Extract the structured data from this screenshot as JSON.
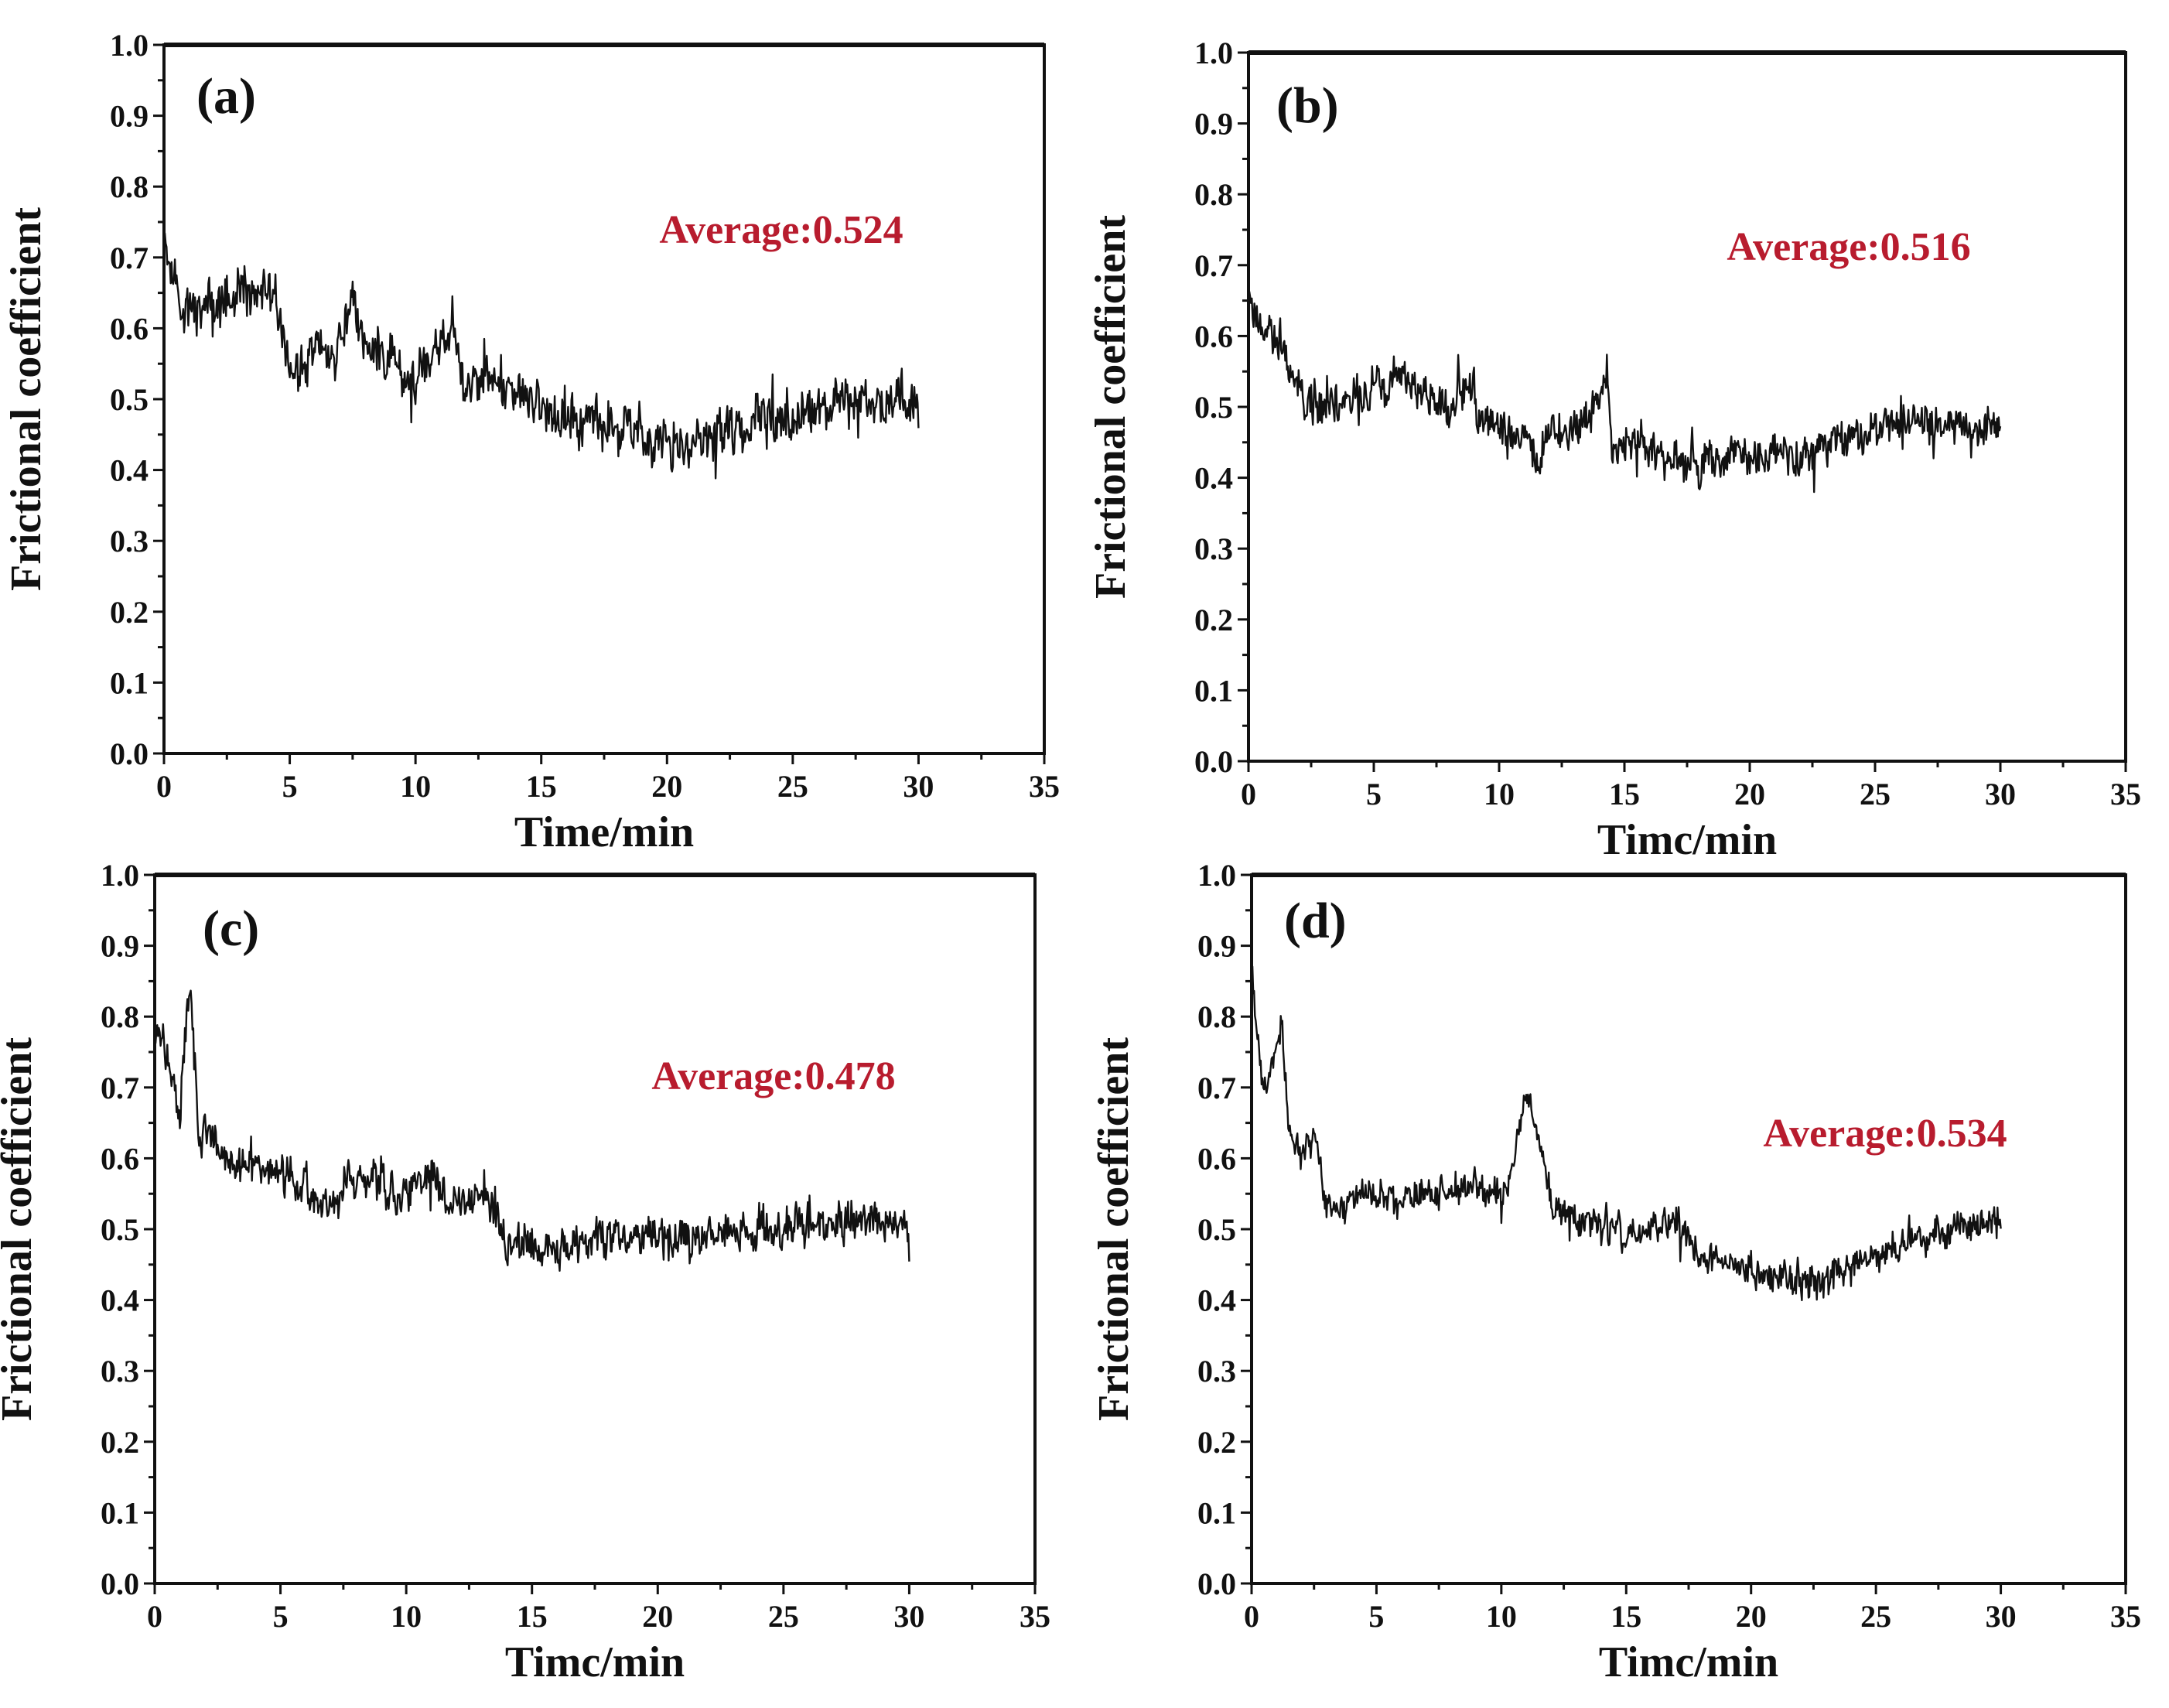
{
  "chart_data": [
    {
      "type": "line",
      "panel": "(a)",
      "xlabel": "Time/min",
      "ylabel": "Frictional coefficient",
      "xlim": [
        0,
        35
      ],
      "ylim": [
        0,
        1.0
      ],
      "xticks": [
        "0",
        "5",
        "10",
        "15",
        "20",
        "25",
        "30",
        "35"
      ],
      "yticks": [
        "0.0",
        "0.1",
        "0.2",
        "0.3",
        "0.4",
        "0.5",
        "0.6",
        "0.7",
        "0.8",
        "0.9",
        "1.0"
      ],
      "annotation": "Average:0.524",
      "noise": 0.03,
      "seed": 11,
      "series": [
        {
          "name": "Frictional coefficient",
          "x": [
            0,
            0.3,
            1,
            2,
            3,
            4,
            4.8,
            5,
            6,
            7,
            7.5,
            8,
            9,
            10,
            11,
            11.5,
            12,
            13,
            14,
            15,
            16,
            17,
            18,
            19,
            20,
            21,
            22,
            23,
            24,
            25,
            26,
            27,
            28,
            29,
            30
          ],
          "y": [
            0.75,
            0.67,
            0.62,
            0.63,
            0.64,
            0.66,
            0.61,
            0.52,
            0.56,
            0.57,
            0.64,
            0.57,
            0.56,
            0.52,
            0.58,
            0.6,
            0.52,
            0.53,
            0.51,
            0.49,
            0.47,
            0.47,
            0.46,
            0.45,
            0.44,
            0.43,
            0.45,
            0.46,
            0.47,
            0.47,
            0.48,
            0.49,
            0.5,
            0.5,
            0.49
          ]
        }
      ]
    },
    {
      "type": "line",
      "panel": "(b)",
      "xlabel": "Timc/min",
      "ylabel": "Frictional coefficient",
      "xlim": [
        0,
        35
      ],
      "ylim": [
        0,
        1.0
      ],
      "xticks": [
        "0",
        "5",
        "10",
        "15",
        "20",
        "25",
        "30",
        "35"
      ],
      "yticks": [
        "0.0",
        "0.1",
        "0.2",
        "0.3",
        "0.4",
        "0.5",
        "0.6",
        "0.7",
        "0.8",
        "0.9",
        "1.0"
      ],
      "annotation": "Average:0.516",
      "noise": 0.025,
      "seed": 23,
      "series": [
        {
          "name": "Frictional coefficient",
          "x": [
            0,
            0.5,
            1,
            2,
            3,
            4,
            5,
            6,
            7,
            8,
            9,
            9.1,
            10,
            11,
            11.5,
            12,
            13,
            14,
            14.3,
            14.5,
            15,
            16,
            17,
            18,
            19,
            20,
            21,
            22,
            23,
            24,
            25,
            26,
            27,
            28,
            29,
            30
          ],
          "y": [
            0.66,
            0.62,
            0.6,
            0.53,
            0.5,
            0.51,
            0.52,
            0.54,
            0.52,
            0.5,
            0.53,
            0.48,
            0.47,
            0.46,
            0.42,
            0.46,
            0.47,
            0.5,
            0.54,
            0.45,
            0.46,
            0.44,
            0.42,
            0.42,
            0.43,
            0.43,
            0.43,
            0.44,
            0.45,
            0.46,
            0.47,
            0.48,
            0.48,
            0.48,
            0.47,
            0.47
          ]
        }
      ]
    },
    {
      "type": "line",
      "panel": "(c)",
      "xlabel": "Timc/min",
      "ylabel": "Frictional coefficient",
      "xlim": [
        0,
        35
      ],
      "ylim": [
        0,
        1.0
      ],
      "xticks": [
        "0",
        "5",
        "10",
        "15",
        "20",
        "25",
        "30",
        "35"
      ],
      "yticks": [
        "0.0",
        "0.1",
        "0.2",
        "0.3",
        "0.4",
        "0.5",
        "0.6",
        "0.7",
        "0.8",
        "0.9",
        "1.0"
      ],
      "annotation": "Average:0.478",
      "noise": 0.025,
      "seed": 37,
      "series": [
        {
          "name": "Frictional coefficient",
          "x": [
            0,
            0.5,
            1,
            1.4,
            1.8,
            2,
            3,
            4,
            5,
            6,
            6.3,
            7,
            8,
            9,
            10,
            11,
            12,
            13,
            14,
            15,
            16,
            17,
            18,
            19,
            20,
            21,
            22,
            23,
            24,
            25,
            26,
            27,
            28,
            29,
            30
          ],
          "y": [
            0.8,
            0.74,
            0.66,
            0.85,
            0.62,
            0.64,
            0.59,
            0.58,
            0.58,
            0.57,
            0.54,
            0.52,
            0.58,
            0.56,
            0.54,
            0.58,
            0.53,
            0.56,
            0.48,
            0.48,
            0.48,
            0.48,
            0.49,
            0.49,
            0.49,
            0.49,
            0.5,
            0.5,
            0.5,
            0.5,
            0.51,
            0.51,
            0.51,
            0.51,
            0.51
          ]
        }
      ]
    },
    {
      "type": "line",
      "panel": "(d)",
      "xlabel": "Timc/min",
      "ylabel": "Frictional coefficient",
      "xlim": [
        0,
        35
      ],
      "ylim": [
        0,
        1.0
      ],
      "xticks": [
        "0",
        "5",
        "10",
        "15",
        "20",
        "25",
        "30",
        "35"
      ],
      "yticks": [
        "0.0",
        "0.1",
        "0.2",
        "0.3",
        "0.4",
        "0.5",
        "0.6",
        "0.7",
        "0.8",
        "0.9",
        "1.0"
      ],
      "annotation": "Average:0.534",
      "noise": 0.02,
      "seed": 53,
      "series": [
        {
          "name": "Frictional coefficient",
          "x": [
            0,
            0.3,
            0.7,
            1.2,
            1.5,
            2,
            2.6,
            3,
            4,
            5,
            6,
            7,
            8,
            9,
            10,
            10.5,
            11,
            11.3,
            12,
            13,
            14,
            15,
            16,
            17,
            18,
            19,
            20,
            21,
            22,
            23,
            24,
            25,
            26,
            27,
            28,
            29,
            30
          ],
          "y": [
            0.88,
            0.74,
            0.7,
            0.8,
            0.63,
            0.6,
            0.63,
            0.53,
            0.54,
            0.55,
            0.55,
            0.55,
            0.55,
            0.56,
            0.53,
            0.6,
            0.7,
            0.66,
            0.53,
            0.51,
            0.51,
            0.49,
            0.5,
            0.51,
            0.46,
            0.45,
            0.44,
            0.43,
            0.43,
            0.43,
            0.45,
            0.47,
            0.48,
            0.49,
            0.5,
            0.51,
            0.51
          ]
        }
      ]
    }
  ]
}
